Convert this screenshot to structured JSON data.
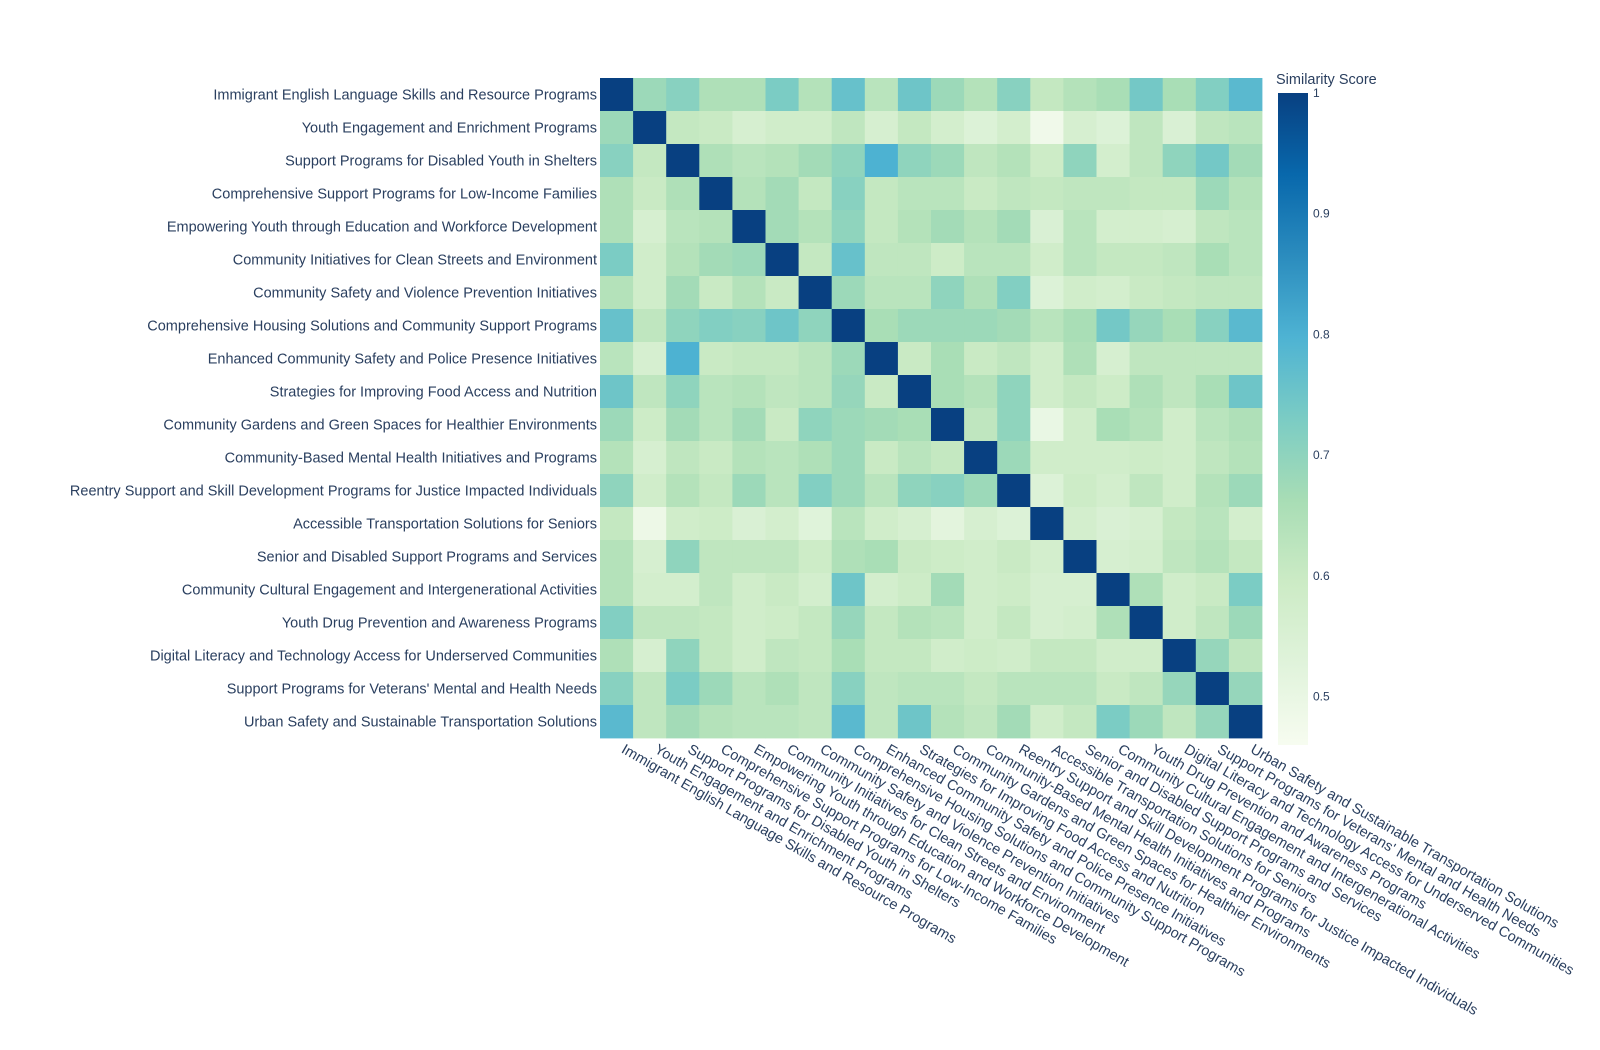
{
  "chart_data": {
    "type": "heatmap",
    "title": "",
    "colorbar_title": "Similarity Score",
    "colorbar_ticks": [
      0.5,
      0.6,
      0.7,
      0.8,
      0.9,
      1
    ],
    "zmin": 0.46,
    "zmax": 1,
    "colorscale": "GnBu",
    "colors": [
      "#f7fcf0",
      "#e0f3db",
      "#ccebc5",
      "#a8ddb5",
      "#7bccc4",
      "#4eb3d3",
      "#2b8cbe",
      "#0868ac",
      "#084081"
    ],
    "labels": [
      "Immigrant English Language Skills and Resource Programs",
      "Youth Engagement and Enrichment Programs",
      "Support Programs for Disabled Youth in Shelters",
      "Comprehensive Support Programs for Low-Income Families",
      "Empowering Youth through Education and Workforce Development",
      "Community Initiatives for Clean Streets and Environment",
      "Community Safety and Violence Prevention Initiatives",
      "Comprehensive Housing Solutions and Community Support Programs",
      "Enhanced Community Safety and Police Presence Initiatives",
      "Strategies for Improving Food Access and Nutrition",
      "Community Gardens and Green Spaces for Healthier Environments",
      "Community-Based Mental Health Initiatives and Programs",
      "Reentry Support and Skill Development Programs for Justice Impacted Individuals",
      "Accessible Transportation Solutions for Seniors",
      "Senior and Disabled Support Programs and Services",
      "Community Cultural Engagement and Intergenerational Activities",
      "Youth Drug Prevention and Awareness Programs",
      "Digital Literacy and Technology Access for Underserved Communities",
      "Support Programs for Veterans' Mental and Health Needs",
      "Urban Safety and Sustainable Transportation Solutions"
    ],
    "z": [
      [
        1.0,
        0.68,
        0.71,
        0.65,
        0.65,
        0.73,
        0.64,
        0.76,
        0.63,
        0.75,
        0.68,
        0.64,
        0.71,
        0.61,
        0.64,
        0.66,
        0.74,
        0.66,
        0.72,
        0.78
      ],
      [
        0.68,
        1.0,
        0.61,
        0.6,
        0.56,
        0.58,
        0.58,
        0.62,
        0.56,
        0.61,
        0.57,
        0.54,
        0.57,
        0.48,
        0.56,
        0.54,
        0.62,
        0.55,
        0.62,
        0.63
      ],
      [
        0.71,
        0.61,
        1.0,
        0.65,
        0.63,
        0.64,
        0.67,
        0.7,
        0.8,
        0.7,
        0.68,
        0.62,
        0.64,
        0.59,
        0.7,
        0.57,
        0.62,
        0.7,
        0.74,
        0.67
      ],
      [
        0.65,
        0.6,
        0.65,
        1.0,
        0.64,
        0.67,
        0.61,
        0.71,
        0.61,
        0.63,
        0.63,
        0.6,
        0.62,
        0.61,
        0.62,
        0.62,
        0.61,
        0.61,
        0.68,
        0.64
      ],
      [
        0.65,
        0.56,
        0.63,
        0.64,
        1.0,
        0.67,
        0.64,
        0.7,
        0.61,
        0.64,
        0.67,
        0.64,
        0.67,
        0.55,
        0.63,
        0.57,
        0.57,
        0.56,
        0.62,
        0.63
      ],
      [
        0.73,
        0.58,
        0.64,
        0.67,
        0.68,
        1.0,
        0.61,
        0.76,
        0.62,
        0.62,
        0.59,
        0.63,
        0.63,
        0.58,
        0.63,
        0.61,
        0.61,
        0.62,
        0.66,
        0.63
      ],
      [
        0.64,
        0.58,
        0.67,
        0.6,
        0.64,
        0.6,
        1.0,
        0.68,
        0.63,
        0.63,
        0.7,
        0.65,
        0.72,
        0.54,
        0.58,
        0.57,
        0.6,
        0.61,
        0.62,
        0.62
      ],
      [
        0.76,
        0.62,
        0.7,
        0.72,
        0.71,
        0.75,
        0.7,
        1.0,
        0.66,
        0.68,
        0.68,
        0.68,
        0.67,
        0.63,
        0.66,
        0.74,
        0.69,
        0.66,
        0.71,
        0.78
      ],
      [
        0.63,
        0.56,
        0.8,
        0.6,
        0.61,
        0.61,
        0.63,
        0.68,
        1.0,
        0.6,
        0.66,
        0.6,
        0.62,
        0.58,
        0.65,
        0.56,
        0.62,
        0.62,
        0.62,
        0.62
      ],
      [
        0.75,
        0.62,
        0.7,
        0.63,
        0.64,
        0.62,
        0.63,
        0.69,
        0.6,
        1.0,
        0.66,
        0.64,
        0.7,
        0.58,
        0.61,
        0.59,
        0.65,
        0.62,
        0.66,
        0.75
      ],
      [
        0.68,
        0.59,
        0.67,
        0.63,
        0.67,
        0.6,
        0.7,
        0.68,
        0.67,
        0.66,
        1.0,
        0.62,
        0.7,
        0.5,
        0.58,
        0.66,
        0.64,
        0.58,
        0.63,
        0.65
      ],
      [
        0.64,
        0.56,
        0.62,
        0.6,
        0.64,
        0.63,
        0.65,
        0.68,
        0.6,
        0.63,
        0.61,
        1.0,
        0.68,
        0.58,
        0.58,
        0.58,
        0.59,
        0.58,
        0.62,
        0.64
      ],
      [
        0.7,
        0.58,
        0.64,
        0.61,
        0.68,
        0.63,
        0.72,
        0.68,
        0.63,
        0.7,
        0.71,
        0.68,
        1.0,
        0.54,
        0.59,
        0.57,
        0.62,
        0.58,
        0.64,
        0.68
      ],
      [
        0.61,
        0.49,
        0.58,
        0.59,
        0.55,
        0.57,
        0.53,
        0.63,
        0.58,
        0.56,
        0.52,
        0.56,
        0.54,
        1.0,
        0.57,
        0.55,
        0.56,
        0.61,
        0.63,
        0.57
      ],
      [
        0.64,
        0.56,
        0.7,
        0.62,
        0.62,
        0.62,
        0.59,
        0.65,
        0.66,
        0.6,
        0.59,
        0.58,
        0.6,
        0.57,
        1.0,
        0.56,
        0.57,
        0.62,
        0.64,
        0.61
      ],
      [
        0.64,
        0.57,
        0.57,
        0.62,
        0.58,
        0.6,
        0.57,
        0.75,
        0.57,
        0.59,
        0.67,
        0.58,
        0.59,
        0.56,
        0.56,
        1.0,
        0.65,
        0.58,
        0.6,
        0.73
      ],
      [
        0.72,
        0.62,
        0.62,
        0.61,
        0.58,
        0.59,
        0.61,
        0.69,
        0.61,
        0.64,
        0.63,
        0.58,
        0.61,
        0.56,
        0.57,
        0.65,
        1.0,
        0.58,
        0.62,
        0.68
      ],
      [
        0.65,
        0.56,
        0.7,
        0.61,
        0.58,
        0.62,
        0.61,
        0.66,
        0.61,
        0.61,
        0.58,
        0.59,
        0.58,
        0.61,
        0.61,
        0.58,
        0.58,
        1.0,
        0.69,
        0.62
      ],
      [
        0.71,
        0.62,
        0.73,
        0.68,
        0.63,
        0.65,
        0.62,
        0.71,
        0.62,
        0.63,
        0.63,
        0.61,
        0.63,
        0.63,
        0.63,
        0.6,
        0.62,
        0.69,
        1.0,
        0.69
      ],
      [
        0.78,
        0.62,
        0.67,
        0.64,
        0.63,
        0.63,
        0.62,
        0.78,
        0.62,
        0.75,
        0.64,
        0.62,
        0.67,
        0.58,
        0.61,
        0.73,
        0.68,
        0.62,
        0.69,
        1.0
      ]
    ]
  }
}
